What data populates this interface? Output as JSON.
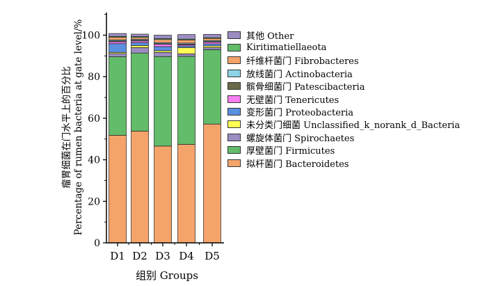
{
  "chart_data": {
    "type": "bar",
    "stacked": true,
    "categories": [
      "D1",
      "D2",
      "D3",
      "D4",
      "D5"
    ],
    "xlabel": "组别 Groups",
    "ylabel_cn": "瘤胃细菌在门水平上的百分比",
    "ylabel_en": "Percentage of rumen bacteria at gate level/%",
    "ylim": [
      0,
      100
    ],
    "yticks": [
      0,
      20,
      40,
      60,
      80,
      100
    ],
    "legend_position": "right",
    "series": [
      {
        "name": "拟杆菌门 Bacteroidetes",
        "color": "#F4A46A",
        "values": [
          51.8,
          53.8,
          46.6,
          47.4,
          57.2
        ]
      },
      {
        "name": "厚壁菌门 Firmicutes",
        "color": "#62BC6A",
        "values": [
          37.8,
          37.6,
          43.1,
          42.4,
          35.8
        ]
      },
      {
        "name": "螺旋体菌门 Spirochaetes",
        "color": "#9B8DC2",
        "values": [
          1.5,
          2.6,
          2.0,
          1.2,
          1.0
        ]
      },
      {
        "name": "未分类门细菌 Unclassified_k_norank_d_Bacteria",
        "color": "#FFFF55",
        "values": [
          0.6,
          1.0,
          0.8,
          3.0,
          0.8
        ]
      },
      {
        "name": "变形菌门 Proteobacteria",
        "color": "#5B8FE0",
        "values": [
          4.2,
          1.4,
          2.0,
          0.8,
          1.0
        ]
      },
      {
        "name": "无壁菌门 Tenericutes",
        "color": "#F77EF0",
        "values": [
          0.9,
          0.8,
          1.1,
          0.6,
          0.8
        ]
      },
      {
        "name": "髌骨细菌门 Patescibacteria",
        "color": "#6A6A4A",
        "values": [
          0.4,
          0.3,
          0.3,
          0.3,
          0.3
        ]
      },
      {
        "name": "放线菌门 Actinobacteria",
        "color": "#8ED3E6",
        "values": [
          0.5,
          0.5,
          0.5,
          0.5,
          0.5
        ]
      },
      {
        "name": "纤维杆菌门 Fibrobacteres",
        "color": "#F4A46A",
        "values": [
          1.3,
          0.9,
          1.5,
          1.5,
          1.0
        ]
      },
      {
        "name": "Kiritimatiellaeota",
        "color": "#62BC6A",
        "values": [
          0.4,
          0.4,
          0.4,
          0.4,
          0.4
        ]
      },
      {
        "name": "其他 Other",
        "color": "#9B8DC2",
        "values": [
          1.4,
          1.2,
          1.7,
          2.2,
          1.6
        ]
      }
    ]
  }
}
